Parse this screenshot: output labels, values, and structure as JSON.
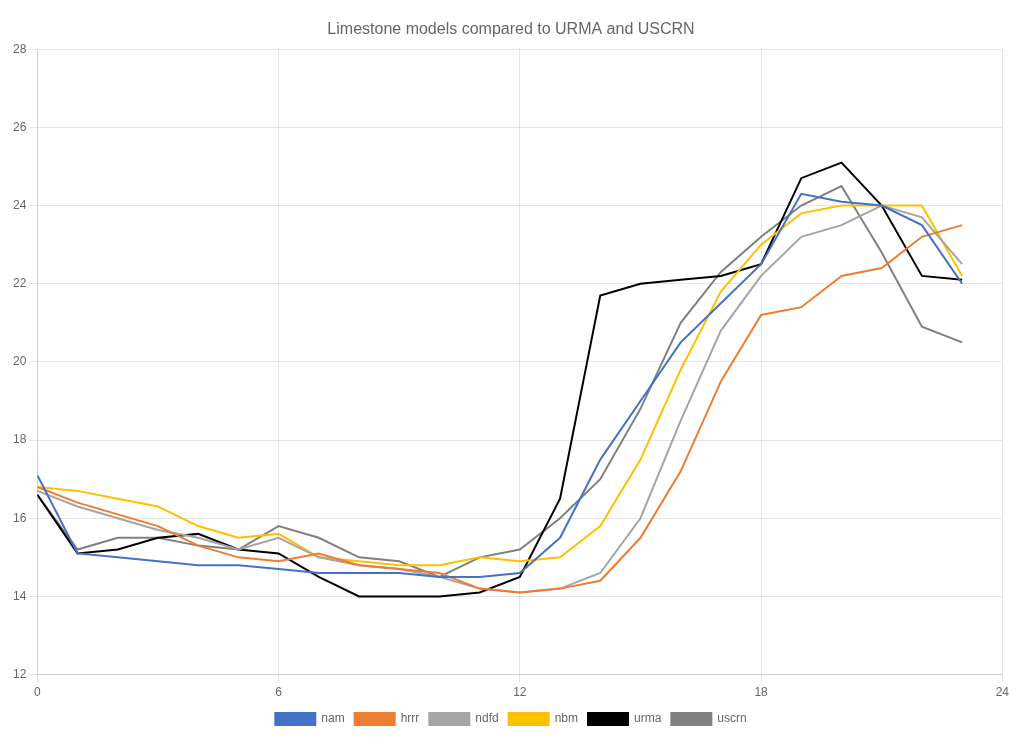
{
  "chart_data": {
    "type": "line",
    "title": "Limestone models compared to URMA and USCRN",
    "x": [
      0,
      1,
      2,
      3,
      4,
      5,
      6,
      7,
      8,
      9,
      10,
      11,
      12,
      13,
      14,
      15,
      16,
      17,
      18,
      19,
      20,
      21,
      22,
      23
    ],
    "series": [
      {
        "name": "nam",
        "color": "#4472c4",
        "values": [
          17.1,
          15.1,
          15.0,
          14.9,
          14.8,
          14.8,
          14.7,
          14.6,
          14.6,
          14.6,
          14.5,
          14.5,
          14.6,
          15.5,
          17.5,
          19.0,
          20.5,
          21.5,
          22.5,
          24.3,
          24.1,
          24.0,
          23.5,
          22.0
        ]
      },
      {
        "name": "hrrr",
        "color": "#ed7d31",
        "values": [
          16.8,
          16.4,
          16.1,
          15.8,
          15.3,
          15.0,
          14.9,
          15.1,
          14.8,
          14.7,
          14.6,
          14.2,
          14.1,
          14.2,
          14.4,
          15.5,
          17.2,
          19.5,
          21.2,
          21.4,
          22.2,
          22.4,
          23.2,
          23.5
        ]
      },
      {
        "name": "ndfd",
        "color": "#a5a5a5",
        "values": [
          16.7,
          16.3,
          16.0,
          15.7,
          15.5,
          15.2,
          15.5,
          15.0,
          14.8,
          14.7,
          14.5,
          14.2,
          14.1,
          14.2,
          14.6,
          16.0,
          18.5,
          20.8,
          22.2,
          23.2,
          23.5,
          24.0,
          23.7,
          22.5
        ]
      },
      {
        "name": "nbm",
        "color": "#ffc000",
        "values": [
          16.8,
          16.7,
          16.5,
          16.3,
          15.8,
          15.5,
          15.6,
          15.0,
          14.9,
          14.8,
          14.8,
          15.0,
          14.9,
          15.0,
          15.8,
          17.5,
          19.8,
          21.8,
          23.0,
          23.8,
          24.0,
          24.0,
          24.0,
          22.2
        ]
      },
      {
        "name": "urma",
        "color": "#000000",
        "values": [
          16.6,
          15.1,
          15.2,
          15.5,
          15.6,
          15.2,
          15.1,
          14.5,
          14.0,
          14.0,
          14.0,
          14.1,
          14.5,
          16.5,
          21.7,
          22.0,
          22.1,
          22.2,
          22.5,
          24.7,
          25.1,
          24.0,
          22.2,
          22.1
        ]
      },
      {
        "name": "uscrn",
        "color": "#808080",
        "values": [
          16.6,
          15.2,
          15.5,
          15.5,
          15.3,
          15.2,
          15.8,
          15.5,
          15.0,
          14.9,
          14.5,
          15.0,
          15.2,
          16.0,
          17.0,
          18.8,
          21.0,
          22.3,
          23.2,
          24.0,
          24.5,
          22.8,
          20.9,
          20.5
        ]
      }
    ],
    "xlim": [
      0,
      24
    ],
    "xticks": [
      0,
      6,
      12,
      18,
      24
    ],
    "ylim": [
      12,
      28
    ],
    "yticks": [
      12,
      14,
      16,
      18,
      20,
      22,
      24,
      26,
      28
    ],
    "grid": true,
    "legend": "bottom"
  }
}
